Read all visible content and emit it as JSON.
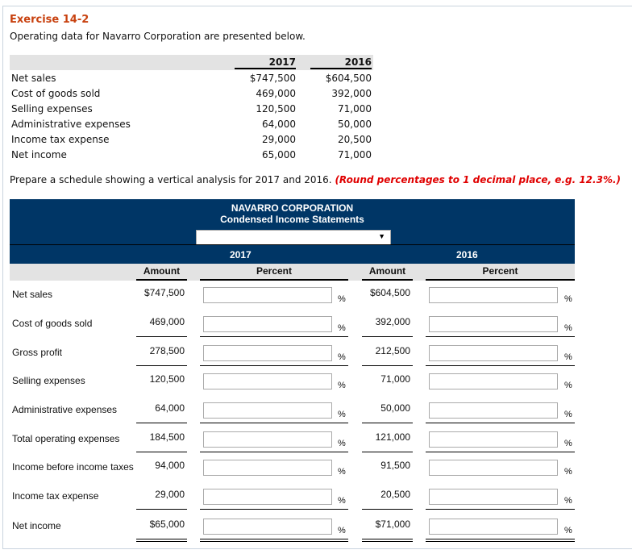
{
  "exercise": {
    "title": "Exercise 14-2",
    "intro": "Operating data for Navarro Corporation are presented below."
  },
  "operating_data": {
    "years": [
      "2017",
      "2016"
    ],
    "rows": [
      {
        "label": "Net sales",
        "y2017": "$747,500",
        "y2016": "$604,500"
      },
      {
        "label": "Cost of goods sold",
        "y2017": "469,000",
        "y2016": "392,000"
      },
      {
        "label": "Selling expenses",
        "y2017": "120,500",
        "y2016": "71,000"
      },
      {
        "label": "Administrative expenses",
        "y2017": "64,000",
        "y2016": "50,000"
      },
      {
        "label": "Income tax expense",
        "y2017": "29,000",
        "y2016": "20,500"
      },
      {
        "label": "Net income",
        "y2017": "65,000",
        "y2016": "71,000"
      }
    ]
  },
  "instructions": {
    "text": "Prepare a schedule showing a vertical analysis for 2017 and 2016.",
    "note": "(Round percentages to 1 decimal place, e.g. 12.3%.)"
  },
  "schedule": {
    "company": "NAVARRO CORPORATION",
    "statement": "Condensed Income Statements",
    "period_select": {
      "value": ""
    },
    "years": [
      "2017",
      "2016"
    ],
    "col_amount": "Amount",
    "col_percent": "Percent",
    "pct_sign": "%",
    "rows": [
      {
        "label": "Net sales",
        "a2017": "$747,500",
        "p2017": "",
        "a2016": "$604,500",
        "p2016": ""
      },
      {
        "label": "Cost of goods sold",
        "a2017": "469,000",
        "p2017": "",
        "a2016": "392,000",
        "p2016": ""
      },
      {
        "label": "Gross profit",
        "a2017": "278,500",
        "p2017": "",
        "a2016": "212,500",
        "p2016": ""
      },
      {
        "label": "Selling expenses",
        "a2017": "120,500",
        "p2017": "",
        "a2016": "71,000",
        "p2016": ""
      },
      {
        "label": "Administrative expenses",
        "a2017": "64,000",
        "p2017": "",
        "a2016": "50,000",
        "p2016": ""
      },
      {
        "label": "Total operating expenses",
        "a2017": "184,500",
        "p2017": "",
        "a2016": "121,000",
        "p2016": ""
      },
      {
        "label": "Income before income taxes",
        "a2017": "94,000",
        "p2017": "",
        "a2016": "91,500",
        "p2016": ""
      },
      {
        "label": "Income tax expense",
        "a2017": "29,000",
        "p2017": "",
        "a2016": "20,500",
        "p2016": ""
      },
      {
        "label": "Net income",
        "a2017": "$65,000",
        "p2017": "",
        "a2016": "$71,000",
        "p2016": ""
      }
    ]
  },
  "colors": {
    "title": "#c8410f",
    "header_bg": "#003666",
    "note": "#e00000"
  }
}
